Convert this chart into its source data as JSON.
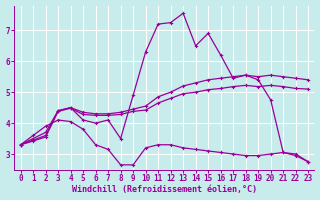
{
  "xlabel": "Windchill (Refroidissement éolien,°C)",
  "bg_color": "#c8ecec",
  "line_color": "#990099",
  "grid_color": "#b0d0d0",
  "xlim": [
    -0.5,
    23.5
  ],
  "ylim": [
    2.5,
    7.8
  ],
  "xticks": [
    0,
    1,
    2,
    3,
    4,
    5,
    6,
    7,
    8,
    9,
    10,
    11,
    12,
    13,
    14,
    15,
    16,
    17,
    18,
    19,
    20,
    21,
    22,
    23
  ],
  "yticks": [
    3,
    4,
    5,
    6,
    7
  ],
  "line_spiky_x": [
    0,
    1,
    2,
    3,
    4,
    5,
    6,
    7,
    8,
    9,
    10,
    11,
    12,
    13,
    14,
    15,
    16,
    17,
    18,
    19,
    20,
    21,
    22,
    23
  ],
  "line_spiky_y": [
    3.3,
    3.5,
    3.7,
    4.4,
    4.5,
    4.1,
    4.0,
    4.1,
    3.5,
    4.9,
    6.3,
    7.2,
    7.25,
    7.55,
    6.5,
    6.9,
    6.2,
    5.45,
    5.55,
    5.4,
    4.75,
    3.05,
    3.0,
    2.75
  ],
  "line_upper_x": [
    0,
    1,
    2,
    3,
    4,
    5,
    6,
    7,
    8,
    9,
    10,
    11,
    12,
    13,
    14,
    15,
    16,
    17,
    18,
    19,
    20,
    21,
    22,
    23
  ],
  "line_upper_y": [
    3.3,
    3.45,
    3.6,
    4.4,
    4.5,
    4.35,
    4.3,
    4.3,
    4.35,
    4.45,
    4.55,
    4.85,
    5.0,
    5.2,
    5.3,
    5.4,
    5.45,
    5.5,
    5.55,
    5.5,
    5.55,
    5.5,
    5.45,
    5.4
  ],
  "line_mid_x": [
    0,
    1,
    2,
    3,
    4,
    5,
    6,
    7,
    8,
    9,
    10,
    11,
    12,
    13,
    14,
    15,
    16,
    17,
    18,
    19,
    20,
    21,
    22,
    23
  ],
  "line_mid_y": [
    3.3,
    3.42,
    3.55,
    4.38,
    4.48,
    4.28,
    4.25,
    4.25,
    4.28,
    4.38,
    4.42,
    4.65,
    4.8,
    4.95,
    5.0,
    5.08,
    5.12,
    5.18,
    5.22,
    5.18,
    5.22,
    5.18,
    5.12,
    5.1
  ],
  "line_low_x": [
    0,
    1,
    2,
    3,
    4,
    5,
    6,
    7,
    8,
    9,
    10,
    11,
    12,
    13,
    14,
    15,
    16,
    17,
    18,
    19,
    20,
    21,
    22,
    23
  ],
  "line_low_y": [
    3.3,
    3.6,
    3.9,
    4.1,
    4.05,
    3.8,
    3.3,
    3.15,
    2.65,
    2.65,
    3.2,
    3.3,
    3.3,
    3.2,
    3.15,
    3.1,
    3.05,
    3.0,
    2.95,
    2.95,
    3.0,
    3.05,
    2.95,
    2.75
  ],
  "font_size": 6,
  "marker": "P",
  "marker_size": 2.5,
  "line_width": 0.9,
  "tick_font_size": 5.5
}
